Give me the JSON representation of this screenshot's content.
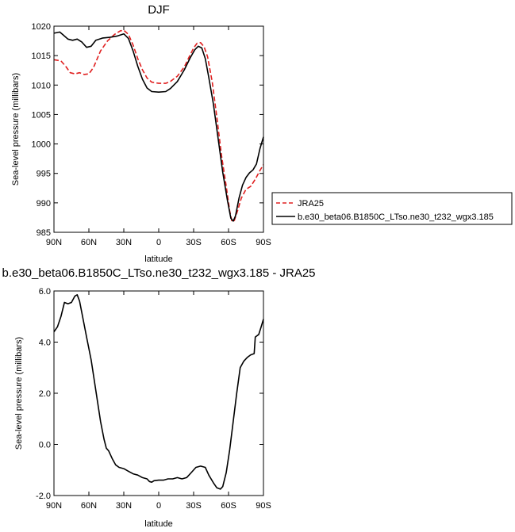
{
  "chart_data": [
    {
      "type": "line",
      "title": "DJF",
      "xlabel": "latitude",
      "ylabel": "Sea-level pressure (millibars)",
      "xlim": [
        90,
        -90
      ],
      "ylim": [
        985,
        1020
      ],
      "x_ticks": [
        90,
        60,
        30,
        0,
        -30,
        -60,
        -90
      ],
      "x_tick_labels": [
        "90N",
        "60N",
        "30N",
        "0",
        "30S",
        "60S",
        "90S"
      ],
      "y_ticks": [
        985,
        990,
        995,
        1000,
        1005,
        1010,
        1015,
        1020
      ],
      "y_tick_labels": [
        "985",
        "990",
        "995",
        "1000",
        "1005",
        "1010",
        "1015",
        "1020"
      ],
      "grid": false,
      "legend_position": "right",
      "series": [
        {
          "name": "JRA25",
          "color": "#e02020",
          "dash": "dashed",
          "points": [
            [
              90,
              1014.3
            ],
            [
              84,
              1014.1
            ],
            [
              80,
              1013.2
            ],
            [
              76,
              1012.1
            ],
            [
              72,
              1011.9
            ],
            [
              68,
              1012.1
            ],
            [
              64,
              1011.8
            ],
            [
              60,
              1011.9
            ],
            [
              56,
              1013.0
            ],
            [
              50,
              1015.8
            ],
            [
              44,
              1017.5
            ],
            [
              38,
              1018.6
            ],
            [
              33,
              1019.2
            ],
            [
              30,
              1019.3
            ],
            [
              26,
              1018.6
            ],
            [
              22,
              1016.8
            ],
            [
              18,
              1014.5
            ],
            [
              14,
              1012.6
            ],
            [
              10,
              1011.2
            ],
            [
              6,
              1010.5
            ],
            [
              0,
              1010.3
            ],
            [
              -6,
              1010.3
            ],
            [
              -10,
              1010.6
            ],
            [
              -16,
              1011.5
            ],
            [
              -22,
              1013.1
            ],
            [
              -26,
              1014.7
            ],
            [
              -30,
              1016.3
            ],
            [
              -33,
              1017.1
            ],
            [
              -36,
              1017.2
            ],
            [
              -39,
              1016.5
            ],
            [
              -42,
              1014.8
            ],
            [
              -46,
              1010.5
            ],
            [
              -50,
              1004.5
            ],
            [
              -54,
              998.0
            ],
            [
              -58,
              992.8
            ],
            [
              -61,
              988.6
            ],
            [
              -63,
              986.8
            ],
            [
              -65,
              987.0
            ],
            [
              -68,
              988.8
            ],
            [
              -71,
              990.8
            ],
            [
              -75,
              992.3
            ],
            [
              -79,
              992.8
            ],
            [
              -83,
              994.0
            ],
            [
              -87,
              995.5
            ],
            [
              -90,
              996.5
            ]
          ]
        },
        {
          "name": "b.e30_beta06.B1850C_LTso.ne30_t232_wgx3.185",
          "color": "#000000",
          "dash": "solid",
          "points": [
            [
              90,
              1018.8
            ],
            [
              85,
              1019.0
            ],
            [
              82,
              1018.5
            ],
            [
              78,
              1017.8
            ],
            [
              74,
              1017.6
            ],
            [
              70,
              1017.8
            ],
            [
              66,
              1017.3
            ],
            [
              62,
              1016.4
            ],
            [
              58,
              1016.6
            ],
            [
              54,
              1017.6
            ],
            [
              48,
              1018.0
            ],
            [
              42,
              1018.1
            ],
            [
              36,
              1018.3
            ],
            [
              30,
              1018.7
            ],
            [
              26,
              1017.9
            ],
            [
              22,
              1015.8
            ],
            [
              18,
              1013.2
            ],
            [
              14,
              1011.0
            ],
            [
              10,
              1009.5
            ],
            [
              6,
              1008.9
            ],
            [
              0,
              1008.8
            ],
            [
              -6,
              1008.9
            ],
            [
              -10,
              1009.4
            ],
            [
              -16,
              1010.6
            ],
            [
              -22,
              1012.6
            ],
            [
              -27,
              1014.6
            ],
            [
              -31,
              1016.0
            ],
            [
              -34,
              1016.6
            ],
            [
              -37,
              1016.3
            ],
            [
              -40,
              1014.5
            ],
            [
              -43,
              1011.3
            ],
            [
              -47,
              1006.8
            ],
            [
              -51,
              1001.0
            ],
            [
              -55,
              995.2
            ],
            [
              -59,
              990.5
            ],
            [
              -62,
              987.4
            ],
            [
              -64,
              986.9
            ],
            [
              -66,
              987.8
            ],
            [
              -69,
              990.8
            ],
            [
              -72,
              993.0
            ],
            [
              -75,
              994.3
            ],
            [
              -78,
              995.1
            ],
            [
              -81,
              995.6
            ],
            [
              -84,
              996.6
            ],
            [
              -87,
              999.2
            ],
            [
              -90,
              1001.2
            ]
          ]
        }
      ]
    },
    {
      "type": "line",
      "title": "b.e30_beta06.B1850C_LTso.ne30_t232_wgx3.185 - JRA25",
      "xlabel": "latitude",
      "ylabel": "Sea-level pressure (millibars)",
      "xlim": [
        90,
        -90
      ],
      "ylim": [
        -2.0,
        6.0
      ],
      "x_ticks": [
        90,
        60,
        30,
        0,
        -30,
        -60,
        -90
      ],
      "x_tick_labels": [
        "90N",
        "60N",
        "30N",
        "0",
        "30S",
        "60S",
        "90S"
      ],
      "y_ticks": [
        -2.0,
        0.0,
        2.0,
        4.0,
        6.0
      ],
      "y_tick_labels": [
        "-2.0",
        "0.0",
        "2.0",
        "4.0",
        "6.0"
      ],
      "grid": false,
      "series": [
        {
          "color": "#000000",
          "dash": "solid",
          "points": [
            [
              90,
              4.4
            ],
            [
              87,
              4.6
            ],
            [
              84,
              5.0
            ],
            [
              81,
              5.55
            ],
            [
              78,
              5.5
            ],
            [
              75,
              5.55
            ],
            [
              72,
              5.8
            ],
            [
              70,
              5.85
            ],
            [
              68,
              5.6
            ],
            [
              65,
              4.9
            ],
            [
              62,
              4.2
            ],
            [
              58,
              3.3
            ],
            [
              54,
              2.1
            ],
            [
              50,
              0.9
            ],
            [
              47,
              0.2
            ],
            [
              45,
              -0.15
            ],
            [
              43,
              -0.25
            ],
            [
              40,
              -0.55
            ],
            [
              37,
              -0.8
            ],
            [
              34,
              -0.9
            ],
            [
              30,
              -0.95
            ],
            [
              26,
              -1.05
            ],
            [
              22,
              -1.15
            ],
            [
              18,
              -1.2
            ],
            [
              14,
              -1.3
            ],
            [
              10,
              -1.35
            ],
            [
              8,
              -1.45
            ],
            [
              6,
              -1.48
            ],
            [
              4,
              -1.42
            ],
            [
              0,
              -1.4
            ],
            [
              -4,
              -1.4
            ],
            [
              -8,
              -1.35
            ],
            [
              -12,
              -1.35
            ],
            [
              -16,
              -1.3
            ],
            [
              -20,
              -1.35
            ],
            [
              -24,
              -1.3
            ],
            [
              -28,
              -1.1
            ],
            [
              -32,
              -0.9
            ],
            [
              -36,
              -0.85
            ],
            [
              -40,
              -0.9
            ],
            [
              -43,
              -1.2
            ],
            [
              -47,
              -1.5
            ],
            [
              -50,
              -1.7
            ],
            [
              -53,
              -1.75
            ],
            [
              -55,
              -1.65
            ],
            [
              -58,
              -1.1
            ],
            [
              -61,
              -0.2
            ],
            [
              -64,
              0.9
            ],
            [
              -67,
              2.0
            ],
            [
              -70,
              3.0
            ],
            [
              -73,
              3.25
            ],
            [
              -76,
              3.4
            ],
            [
              -79,
              3.5
            ],
            [
              -82,
              3.55
            ],
            [
              -83,
              4.2
            ],
            [
              -86,
              4.3
            ],
            [
              -88,
              4.6
            ],
            [
              -90,
              4.9
            ]
          ]
        }
      ]
    }
  ]
}
